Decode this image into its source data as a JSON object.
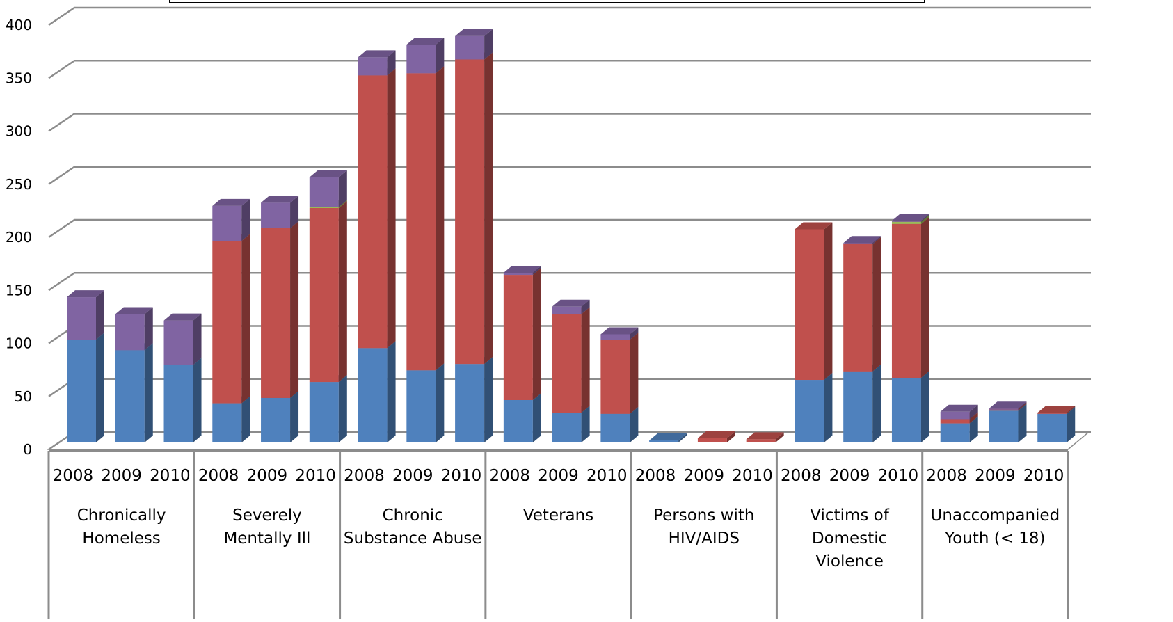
{
  "chart_data": {
    "type": "bar",
    "stacked": true,
    "three_d": true,
    "title": "",
    "xlabel": "",
    "ylabel": "",
    "ylim": [
      0,
      400
    ],
    "yticks": [
      "0",
      "50",
      "100",
      "150",
      "200",
      "250",
      "300",
      "350",
      "400"
    ],
    "grid": true,
    "legend": "none",
    "groups": [
      {
        "label": "Chronically Homeless",
        "lines": [
          "Chronically",
          "Homeless"
        ],
        "years": [
          "2008",
          "2009",
          "2010"
        ]
      },
      {
        "label": "Severely Mentally Ill",
        "lines": [
          "Severely",
          "Mentally Ill"
        ],
        "years": [
          "2008",
          "2009",
          "2010"
        ]
      },
      {
        "label": "Chronic Substance Abuse",
        "lines": [
          "Chronic",
          "Substance Abuse"
        ],
        "years": [
          "2008",
          "2009",
          "2010"
        ]
      },
      {
        "label": "Veterans",
        "lines": [
          "Veterans"
        ],
        "years": [
          "2008",
          "2009",
          "2010"
        ]
      },
      {
        "label": "Persons with HIV/AIDS",
        "lines": [
          "Persons with",
          "HIV/AIDS"
        ],
        "years": [
          "2008",
          "2009",
          "2010"
        ]
      },
      {
        "label": "Victims of Domestic Violence",
        "lines": [
          "Victims of",
          "Domestic",
          "Violence"
        ],
        "years": [
          "2008",
          "2009",
          "2010"
        ]
      },
      {
        "label": "Unaccompanied Youth (< 18)",
        "lines": [
          "Unaccompanied",
          "Youth (< 18)"
        ],
        "years": [
          "2008",
          "2009",
          "2010"
        ]
      }
    ],
    "series": [
      {
        "color": "#4f81bd",
        "values": [
          97,
          87,
          73,
          37,
          42,
          57,
          89,
          68,
          74,
          40,
          28,
          27,
          2,
          0,
          0,
          59,
          67,
          61,
          18,
          30,
          27
        ]
      },
      {
        "color": "#c0504d",
        "values": [
          0,
          0,
          0,
          153,
          160,
          164,
          257,
          280,
          287,
          118,
          93,
          70,
          0,
          4,
          3,
          142,
          120,
          145,
          4,
          1,
          1
        ]
      },
      {
        "color": "#9bbb59",
        "values": [
          0,
          0,
          0,
          0,
          0,
          1,
          0,
          0,
          0,
          0,
          0,
          0,
          0,
          0,
          0,
          0,
          0,
          2,
          0,
          0,
          0
        ]
      },
      {
        "color": "#8064a2",
        "values": [
          40,
          34,
          42,
          33,
          24,
          28,
          17,
          27,
          22,
          2,
          7,
          5,
          0,
          0,
          0,
          0,
          1,
          1,
          7,
          1,
          0
        ]
      }
    ]
  }
}
